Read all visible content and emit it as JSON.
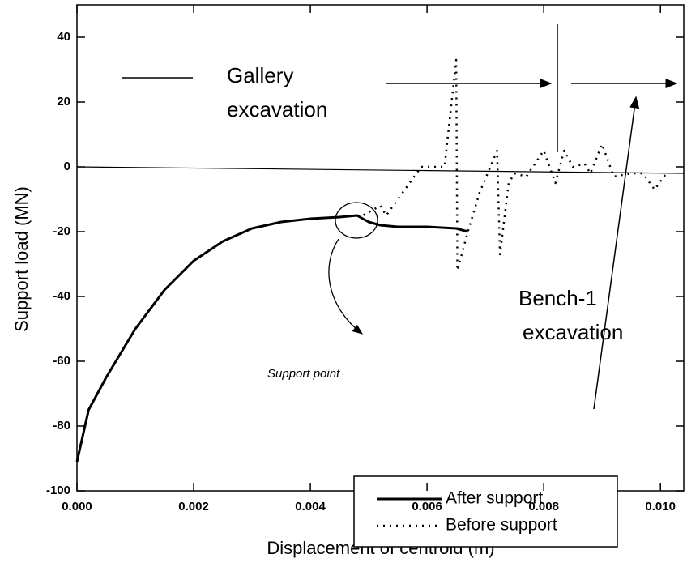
{
  "chart_data": {
    "type": "line",
    "xlabel": "Displacement of centroid (m)",
    "ylabel": "Support   load (MN)",
    "xlim": [
      0,
      0.0104
    ],
    "ylim": [
      -100,
      50
    ],
    "xticks": [
      {
        "value": 0,
        "label": "0.000"
      },
      {
        "value": 0.002,
        "label": "0.002"
      },
      {
        "value": 0.004,
        "label": "0.004"
      },
      {
        "value": 0.006,
        "label": "0.006"
      },
      {
        "value": 0.008,
        "label": "0.008"
      },
      {
        "value": 0.01,
        "label": "0.010"
      }
    ],
    "yticks": [
      -100,
      -80,
      -60,
      -40,
      -20,
      0,
      20,
      40
    ],
    "series": [
      {
        "name": "After support",
        "color": "#000000",
        "style": "solid",
        "x": [
          0,
          0.0002,
          0.0005,
          0.001,
          0.0015,
          0.002,
          0.0025,
          0.003,
          0.0035,
          0.004,
          0.0045,
          0.0048,
          0.005,
          0.0052,
          0.0055,
          0.006,
          0.0065,
          0.0067
        ],
        "values": [
          -91,
          -75,
          -65,
          -50,
          -38,
          -29,
          -23,
          -19,
          -17,
          -16,
          -15.5,
          -15,
          -17,
          -18,
          -18.5,
          -18.5,
          -19,
          -20
        ]
      },
      {
        "name": "Before support",
        "color": "#000000",
        "style": "dotted",
        "x": [
          0.0048,
          0.0049,
          0.005,
          0.0052,
          0.0053,
          0.0055,
          0.0057,
          0.0059,
          0.0063,
          0.0065,
          0.00652,
          0.0067,
          0.0069,
          0.0072,
          0.00725,
          0.0074,
          0.0075,
          0.0077,
          0.008,
          0.0082,
          0.00835,
          0.0085,
          0.0087,
          0.0088,
          0.009,
          0.0092,
          0.0095,
          0.0097,
          0.0099,
          0.0101
        ],
        "values": [
          -15,
          -15,
          -14,
          -12,
          -15,
          -10,
          -5,
          0,
          0,
          33,
          -32,
          -20,
          -8,
          5,
          -27,
          -5,
          -2,
          -3,
          5,
          -5,
          5,
          0,
          1,
          -2,
          7,
          -3,
          -2,
          -2,
          -7,
          -2
        ]
      }
    ],
    "annotations": [
      "Gallery",
      "excavation",
      "Bench-1",
      "excavation",
      "Support point"
    ]
  }
}
